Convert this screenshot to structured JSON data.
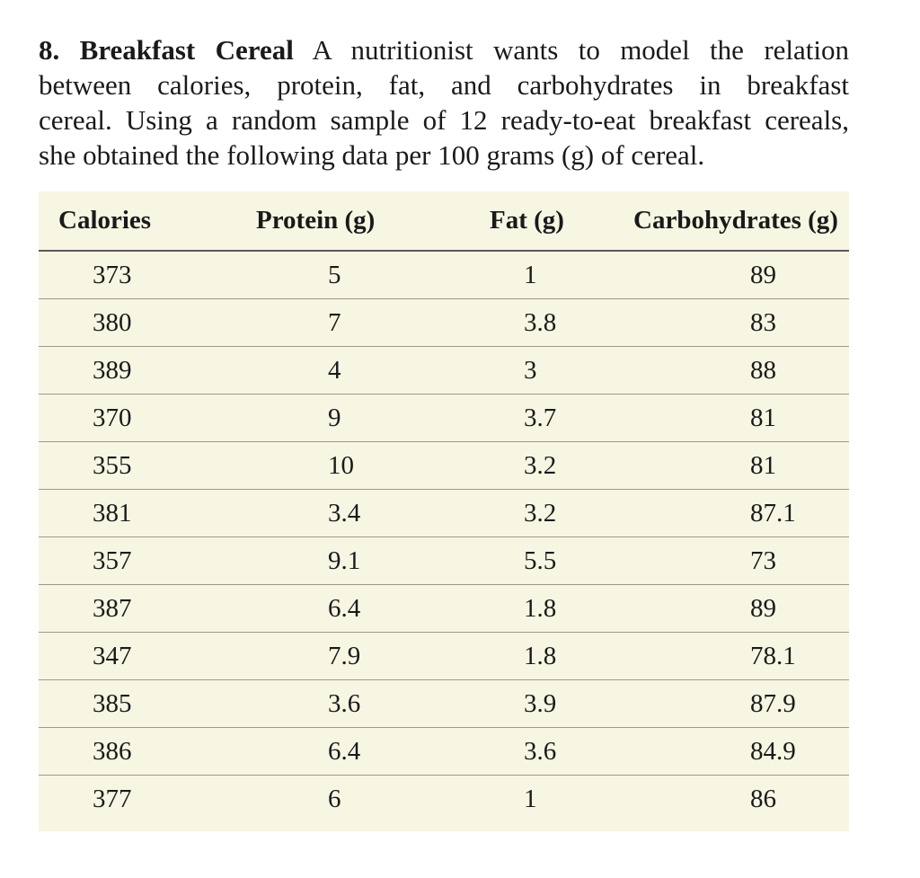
{
  "problem": {
    "number": "8.",
    "title": "Breakfast Cereal",
    "lines": [
      " A nutritionist wants to model the relation",
      "between calories, protein, fat, and carbohydrates in breakfast",
      "cereal. Using a random sample of 12 ready-to-eat breakfast cereals,",
      "she obtained the following data per 100 grams (g) of cereal."
    ]
  },
  "table": {
    "headers": [
      "Calories",
      "Protein (g)",
      "Fat (g)",
      "Carbohydrates (g)"
    ],
    "rows": [
      [
        "373",
        "5",
        "1",
        "89"
      ],
      [
        "380",
        "7",
        "3.8",
        "83"
      ],
      [
        "389",
        "4",
        "3",
        "88"
      ],
      [
        "370",
        "9",
        "3.7",
        "81"
      ],
      [
        "355",
        "10",
        "3.2",
        "81"
      ],
      [
        "381",
        "3.4",
        "3.2",
        "87.1"
      ],
      [
        "357",
        "9.1",
        "5.5",
        "73"
      ],
      [
        "387",
        "6.4",
        "1.8",
        "89"
      ],
      [
        "347",
        "7.9",
        "1.8",
        "78.1"
      ],
      [
        "385",
        "3.6",
        "3.9",
        "87.9"
      ],
      [
        "386",
        "6.4",
        "3.6",
        "84.9"
      ],
      [
        "377",
        "6",
        "1",
        "86"
      ]
    ]
  }
}
